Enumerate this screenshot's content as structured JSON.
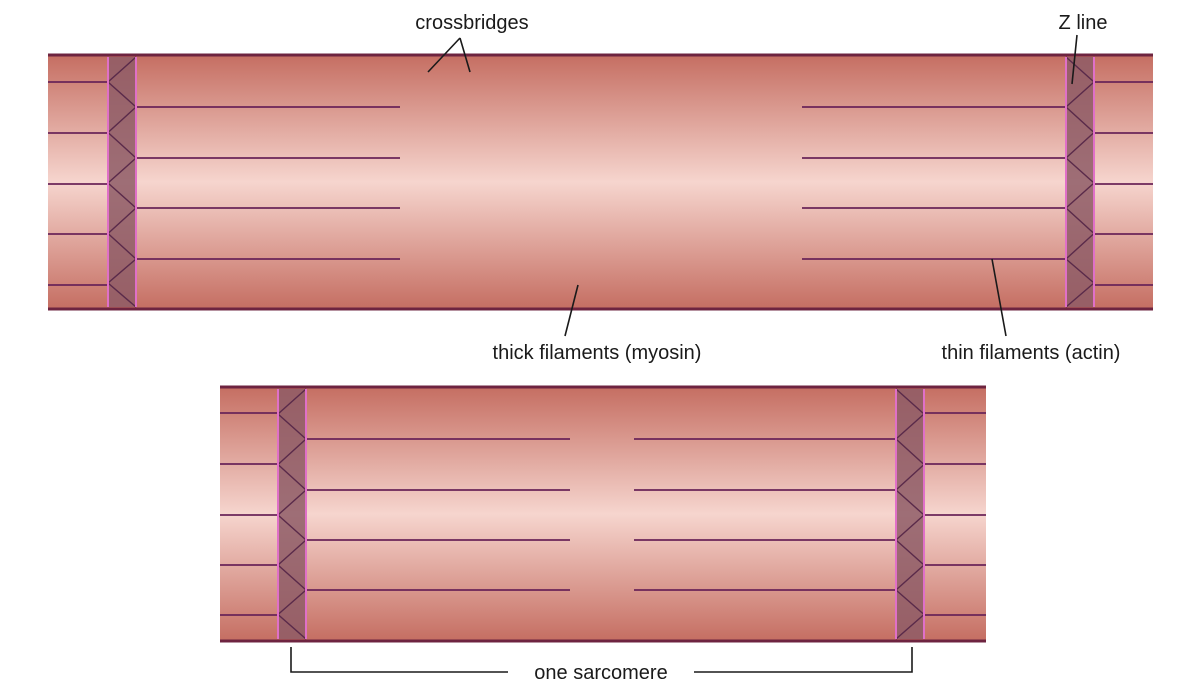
{
  "labels": {
    "crossbridges": "crossbridges",
    "z_line": "Z line",
    "thick_filaments": "thick filaments (myosin)",
    "thin_filaments": "thin filaments (actin)",
    "one_sarcomere": "one sarcomere"
  },
  "colors": {
    "muscle_edge": "#c87266",
    "muscle_mid": "#f5d2cb",
    "border": "#6e2440",
    "zband_fill": "#8e5c66",
    "zband_edge": "#e070c8",
    "myosin": "#cc0000",
    "myosin_glow": "#ff8a8a",
    "actin": "#6a2458"
  },
  "panels": [
    {
      "name": "relaxed-sarcomere",
      "state": "relaxed"
    },
    {
      "name": "contracted-sarcomere",
      "state": "contracted"
    }
  ]
}
